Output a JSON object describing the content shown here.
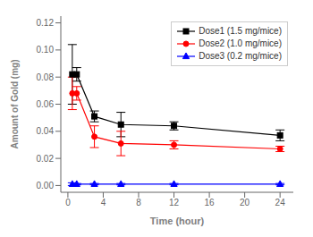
{
  "chart_data": {
    "type": "line",
    "xlabel": "Time (hour)",
    "ylabel": "Amount of Gold (mg)",
    "x": [
      0.5,
      1,
      3,
      6,
      12,
      24
    ],
    "xlim": [
      -0.8,
      25.5
    ],
    "ylim": [
      -0.005,
      0.125
    ],
    "xticks": [
      0,
      4,
      8,
      12,
      16,
      20,
      24
    ],
    "yticks": [
      {
        "value": 0,
        "label": "0.00"
      },
      0.02,
      0.04,
      0.06,
      0.08,
      {
        "value": 0.1,
        "label": "0.10"
      },
      0.12
    ],
    "series": [
      {
        "name": "Dose1 (1.5 mg/mice)",
        "color": "#000000",
        "marker": "square",
        "values": [
          0.082,
          0.082,
          0.051,
          0.045,
          0.044,
          0.037
        ],
        "yerr": [
          0.022,
          0.005,
          0.004,
          0.009,
          0.003,
          0.004
        ]
      },
      {
        "name": "Dose2 (1.0 mg/mice)",
        "color": "#ff0000",
        "marker": "circle",
        "values": [
          0.068,
          0.068,
          0.036,
          0.031,
          0.03,
          0.027
        ],
        "yerr": [
          0.012,
          0.005,
          0.008,
          0.009,
          0.003,
          0.002
        ]
      },
      {
        "name": "Dose3 (0.2 mg/mice)",
        "color": "#0000ff",
        "marker": "triangle",
        "values": [
          0.001,
          0.001,
          0.001,
          0.001,
          0.001,
          0.001
        ],
        "yerr": [
          0.001,
          0.0005,
          0.0005,
          0.0005,
          0.0005,
          0.0005
        ]
      }
    ],
    "legend": "upper right",
    "grid": false
  }
}
